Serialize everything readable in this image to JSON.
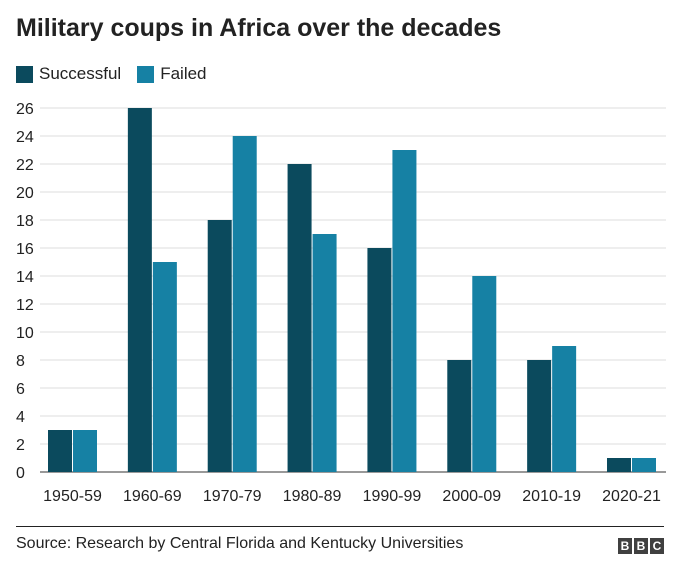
{
  "chart_data": {
    "type": "bar",
    "title": "Military coups in Africa over the decades",
    "categories": [
      "1950-59",
      "1960-69",
      "1970-79",
      "1980-89",
      "1990-99",
      "2000-09",
      "2010-19",
      "2020-21"
    ],
    "series": [
      {
        "name": "Successful",
        "color": "#0b4a5d",
        "values": [
          3,
          26,
          18,
          22,
          16,
          8,
          8,
          1
        ]
      },
      {
        "name": "Failed",
        "color": "#1681a4",
        "values": [
          3,
          15,
          24,
          17,
          23,
          14,
          9,
          1
        ]
      }
    ],
    "ylim": [
      0,
      26
    ],
    "yticks": [
      0,
      2,
      4,
      6,
      8,
      10,
      12,
      14,
      16,
      18,
      20,
      22,
      24,
      26
    ],
    "grid": true,
    "legend_position": "top-left",
    "xlabel": "",
    "ylabel": ""
  },
  "source": "Source: Research by Central Florida and Kentucky Universities",
  "logo": {
    "letters": [
      "B",
      "B",
      "C"
    ]
  }
}
